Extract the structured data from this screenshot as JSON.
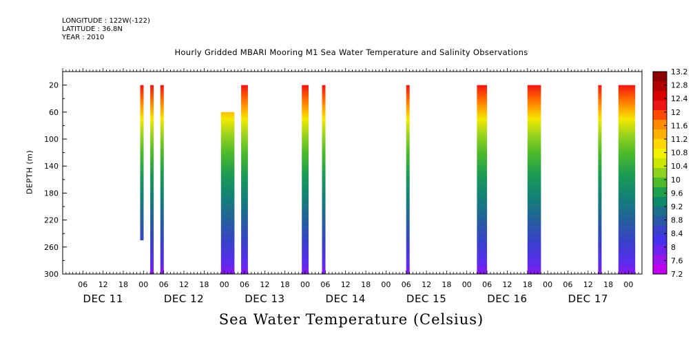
{
  "header": {
    "longitude": "LONGITUDE : 122W(-122)",
    "latitude": "LATITUDE : 36.8N",
    "year": "YEAR : 2010"
  },
  "chart_data": {
    "type": "heatmap",
    "title": "Hourly Gridded MBARI Mooring M1 Sea Water Temperature and Salinity Observations",
    "xlabel": "",
    "ylabel": "DEPTH (m)",
    "colorbar_title": "Sea Water Temperature (Celsius)",
    "y_ticks": [
      "20",
      "60",
      "100",
      "140",
      "180",
      "220",
      "260",
      "300"
    ],
    "ylim": [
      20,
      300
    ],
    "x_hour_ticks": [
      "06",
      "12",
      "18",
      "00"
    ],
    "x_days": [
      "DEC 11",
      "DEC 12",
      "DEC 13",
      "DEC 14",
      "DEC 15",
      "DEC 16",
      "DEC 17"
    ],
    "colorbar_levels": [
      "13.2",
      "12.8",
      "12.4",
      "12",
      "11.6",
      "11.2",
      "10.8",
      "10.4",
      "10",
      "9.6",
      "9.2",
      "8.8",
      "8.4",
      "8",
      "7.6",
      "7.2"
    ],
    "colorbar_colors": [
      "#8b0000",
      "#b30000",
      "#d60000",
      "#f01515",
      "#ff4a00",
      "#ff8c00",
      "#ffb000",
      "#ffd700",
      "#f2f200",
      "#c8e600",
      "#8ed21e",
      "#4cba2a",
      "#1fa04a",
      "#0e8a6a",
      "#1e6f8c",
      "#2a57a6",
      "#3a3fcc",
      "#4630ec",
      "#6d22ee",
      "#9a14ec",
      "#c000f0"
    ],
    "columns": [
      {
        "start": "2010-12-11T23:00",
        "end": "2010-12-12T00:00",
        "top_depth": 20,
        "bottom_depth": 250
      },
      {
        "start": "2010-12-12T02:00",
        "end": "2010-12-12T03:00",
        "top_depth": 20,
        "bottom_depth": 300
      },
      {
        "start": "2010-12-12T05:00",
        "end": "2010-12-12T06:00",
        "top_depth": 20,
        "bottom_depth": 300
      },
      {
        "start": "2010-12-12T23:00",
        "end": "2010-12-13T03:00",
        "top_depth": 60,
        "bottom_depth": 300
      },
      {
        "start": "2010-12-13T05:00",
        "end": "2010-12-13T07:00",
        "top_depth": 20,
        "bottom_depth": 300
      },
      {
        "start": "2010-12-13T23:00",
        "end": "2010-12-14T01:00",
        "top_depth": 20,
        "bottom_depth": 300
      },
      {
        "start": "2010-12-14T05:00",
        "end": "2010-12-14T06:00",
        "top_depth": 20,
        "bottom_depth": 300
      },
      {
        "start": "2010-12-15T06:00",
        "end": "2010-12-15T07:00",
        "top_depth": 20,
        "bottom_depth": 300
      },
      {
        "start": "2010-12-16T03:00",
        "end": "2010-12-16T06:00",
        "top_depth": 20,
        "bottom_depth": 300
      },
      {
        "start": "2010-12-16T18:00",
        "end": "2010-12-16T22:00",
        "top_depth": 20,
        "bottom_depth": 300
      },
      {
        "start": "2010-12-17T15:00",
        "end": "2010-12-17T16:00",
        "top_depth": 20,
        "bottom_depth": 300
      },
      {
        "start": "2010-12-17T21:00",
        "end": "2010-12-18T02:00",
        "top_depth": 20,
        "bottom_depth": 300
      }
    ]
  }
}
